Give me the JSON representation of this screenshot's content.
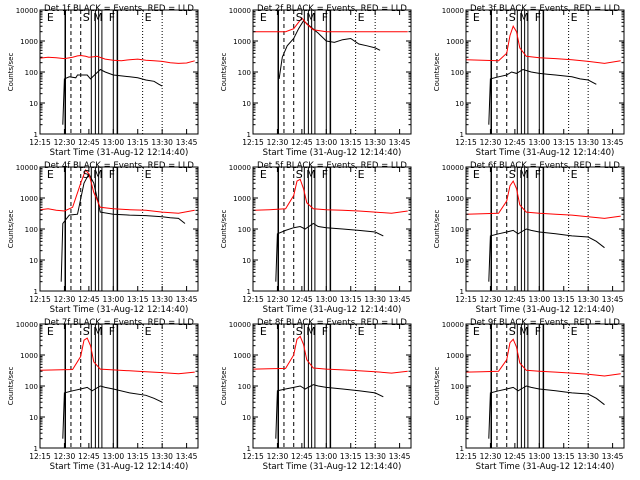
{
  "figure": {
    "time_axis_label": "Start Time (31-Aug-12 12:14:40)",
    "y_axis_label": "Counts/sec",
    "x_tick_labels": [
      "12:15",
      "12:30",
      "12:45",
      "13:00",
      "13:15",
      "13:30",
      "13:45"
    ],
    "y_tick_labels": [
      "1",
      "10",
      "100",
      "1000",
      "10000"
    ],
    "colors": {
      "events": "#000000",
      "lld": "#ff0000",
      "axes": "#000000",
      "background": "#ffffff"
    }
  },
  "chart_data": [
    {
      "type": "line",
      "title": "Det 1f BLACK = Events, RED = LLD",
      "xlabel": "Start Time (31-Aug-12 12:14:40)",
      "ylabel": "Counts/sec",
      "xlim": [
        "12:15",
        "13:52"
      ],
      "ylim": [
        1,
        10000
      ],
      "yscale": "log",
      "attenuator_labels": [
        "E",
        "S",
        "M",
        "F",
        "E"
      ],
      "series": [
        {
          "color": "black",
          "x": [
            "12:29",
            "12:30",
            "12:33",
            "12:37",
            "12:38",
            "12:44",
            "12:46",
            "12:52",
            "12:55",
            "13:00",
            "13:05",
            "13:10",
            "13:15",
            "13:20",
            "13:25",
            "13:28",
            "13:30"
          ],
          "values": [
            2,
            60,
            70,
            65,
            80,
            80,
            60,
            120,
            100,
            80,
            75,
            70,
            65,
            55,
            50,
            40,
            35
          ]
        },
        {
          "color": "red",
          "x": [
            "12:15",
            "12:20",
            "12:25",
            "12:30",
            "12:35",
            "12:38",
            "12:40",
            "12:43",
            "12:45",
            "12:48",
            "12:50",
            "12:55",
            "13:00",
            "13:05",
            "13:10",
            "13:15",
            "13:20",
            "13:25",
            "13:30",
            "13:35",
            "13:40",
            "13:45",
            "13:50"
          ],
          "values": [
            280,
            300,
            290,
            270,
            300,
            330,
            340,
            320,
            300,
            310,
            320,
            260,
            240,
            230,
            250,
            260,
            240,
            230,
            220,
            200,
            190,
            195,
            230
          ]
        }
      ]
    },
    {
      "type": "line",
      "title": "Det 2f BLACK = Events, RED = LLD",
      "xlabel": "Start Time (31-Aug-12 12:14:40)",
      "ylabel": "Counts/sec",
      "xlim": [
        "12:15",
        "13:52"
      ],
      "ylim": [
        1,
        10000
      ],
      "yscale": "log",
      "attenuator_labels": [
        "E",
        "S",
        "M",
        "F",
        "E"
      ],
      "series": [
        {
          "color": "black",
          "x": [
            "12:31",
            "12:33",
            "12:36",
            "12:40",
            "12:43",
            "12:46",
            "12:50",
            "12:55",
            "13:00",
            "13:05",
            "13:10",
            "13:15",
            "13:20",
            "13:25",
            "13:30",
            "13:33"
          ],
          "values": [
            60,
            300,
            700,
            1200,
            2500,
            4500,
            3000,
            1800,
            1000,
            900,
            1100,
            1200,
            800,
            700,
            600,
            500
          ]
        },
        {
          "color": "red",
          "x": [
            "12:15",
            "12:25",
            "12:35",
            "12:40",
            "12:43",
            "12:45",
            "12:48",
            "12:52",
            "13:00",
            "13:10",
            "13:20",
            "13:30",
            "13:40",
            "13:50"
          ],
          "values": [
            2000,
            2000,
            2000,
            2500,
            4000,
            5500,
            3500,
            2300,
            2000,
            2000,
            2000,
            2000,
            2000,
            2000
          ]
        }
      ]
    },
    {
      "type": "line",
      "title": "Det 3f BLACK = Events, RED = LLD",
      "xlabel": "Start Time (31-Aug-12 12:14:40)",
      "ylabel": "Counts/sec",
      "xlim": [
        "12:15",
        "13:52"
      ],
      "ylim": [
        1,
        10000
      ],
      "yscale": "log",
      "attenuator_labels": [
        "E",
        "S",
        "M",
        "F",
        "E"
      ],
      "series": [
        {
          "color": "black",
          "x": [
            "12:29",
            "12:30",
            "12:35",
            "12:40",
            "12:43",
            "12:46",
            "12:50",
            "12:55",
            "13:00",
            "13:05",
            "13:10",
            "13:15",
            "13:20",
            "13:25",
            "13:30",
            "13:35"
          ],
          "values": [
            2,
            60,
            70,
            80,
            100,
            90,
            120,
            100,
            90,
            85,
            80,
            75,
            70,
            60,
            55,
            40
          ]
        },
        {
          "color": "red",
          "x": [
            "12:15",
            "12:25",
            "12:35",
            "12:40",
            "12:42",
            "12:44",
            "12:46",
            "12:48",
            "12:52",
            "13:00",
            "13:10",
            "13:20",
            "13:30",
            "13:40",
            "13:50"
          ],
          "values": [
            250,
            240,
            230,
            400,
            1500,
            3000,
            2000,
            600,
            320,
            290,
            270,
            250,
            220,
            190,
            230
          ]
        }
      ]
    },
    {
      "type": "line",
      "title": "Det 4f BLACK = Events, RED = LLD",
      "xlabel": "Start Time (31-Aug-12 12:14:40)",
      "ylabel": "Counts/sec",
      "xlim": [
        "12:15",
        "13:52"
      ],
      "ylim": [
        1,
        10000
      ],
      "yscale": "log",
      "attenuator_labels": [
        "E",
        "S",
        "M",
        "F",
        "E"
      ],
      "series": [
        {
          "color": "black",
          "x": [
            "12:28",
            "12:29",
            "12:33",
            "12:38",
            "12:42",
            "12:45",
            "12:48",
            "12:52",
            "13:00",
            "13:10",
            "13:20",
            "13:30",
            "13:35",
            "13:40",
            "13:44"
          ],
          "values": [
            2,
            150,
            280,
            300,
            3000,
            6000,
            3000,
            350,
            300,
            280,
            270,
            250,
            230,
            220,
            150
          ]
        },
        {
          "color": "red",
          "x": [
            "12:15",
            "12:20",
            "12:25",
            "12:30",
            "12:35",
            "12:40",
            "12:43",
            "12:45",
            "12:48",
            "12:52",
            "13:00",
            "13:10",
            "13:20",
            "13:30",
            "13:40",
            "13:50"
          ],
          "values": [
            420,
            450,
            400,
            380,
            500,
            3000,
            8000,
            6000,
            1500,
            500,
            450,
            420,
            400,
            350,
            320,
            400
          ]
        }
      ]
    },
    {
      "type": "line",
      "title": "Det 5f BLACK = Events, RED = LLD",
      "xlabel": "Start Time (31-Aug-12 12:14:40)",
      "ylabel": "Counts/sec",
      "xlim": [
        "12:15",
        "13:52"
      ],
      "ylim": [
        1,
        10000
      ],
      "yscale": "log",
      "attenuator_labels": [
        "E",
        "S",
        "M",
        "F",
        "E"
      ],
      "series": [
        {
          "color": "black",
          "x": [
            "12:29",
            "12:30",
            "12:35",
            "12:40",
            "12:44",
            "12:47",
            "12:52",
            "12:55",
            "13:00",
            "13:10",
            "13:20",
            "13:30",
            "13:35"
          ],
          "values": [
            2,
            70,
            90,
            110,
            120,
            100,
            150,
            120,
            110,
            100,
            90,
            80,
            60
          ]
        },
        {
          "color": "red",
          "x": [
            "12:15",
            "12:25",
            "12:35",
            "12:40",
            "12:42",
            "12:44",
            "12:46",
            "12:48",
            "12:52",
            "13:00",
            "13:10",
            "13:20",
            "13:30",
            "13:40",
            "13:50"
          ],
          "values": [
            400,
            420,
            450,
            1200,
            3500,
            4000,
            2000,
            700,
            450,
            420,
            400,
            380,
            350,
            320,
            380
          ]
        }
      ]
    },
    {
      "type": "line",
      "title": "Det 6f BLACK = Events, RED = LLD",
      "xlabel": "Start Time (31-Aug-12 12:14:40)",
      "ylabel": "Counts/sec",
      "xlim": [
        "12:15",
        "13:52"
      ],
      "ylim": [
        1,
        10000
      ],
      "yscale": "log",
      "attenuator_labels": [
        "E",
        "S",
        "M",
        "F",
        "E"
      ],
      "series": [
        {
          "color": "black",
          "x": [
            "12:29",
            "12:30",
            "12:35",
            "12:40",
            "12:44",
            "12:47",
            "12:52",
            "12:55",
            "13:00",
            "13:10",
            "13:20",
            "13:30",
            "13:35",
            "13:40"
          ],
          "values": [
            2,
            60,
            70,
            80,
            90,
            70,
            100,
            90,
            80,
            70,
            60,
            55,
            40,
            25
          ]
        },
        {
          "color": "red",
          "x": [
            "12:15",
            "12:25",
            "12:35",
            "12:40",
            "12:42",
            "12:44",
            "12:46",
            "12:48",
            "12:52",
            "13:00",
            "13:10",
            "13:20",
            "13:30",
            "13:40",
            "13:50"
          ],
          "values": [
            300,
            310,
            320,
            800,
            2500,
            3500,
            2000,
            600,
            350,
            320,
            300,
            280,
            250,
            220,
            260
          ]
        }
      ]
    },
    {
      "type": "line",
      "title": "Det 7f BLACK = Events, RED = LLD",
      "xlabel": "Start Time (31-Aug-12 12:14:40)",
      "ylabel": "Counts/sec",
      "xlim": [
        "12:15",
        "13:52"
      ],
      "ylim": [
        1,
        10000
      ],
      "yscale": "log",
      "attenuator_labels": [
        "E",
        "S",
        "M",
        "F",
        "E"
      ],
      "series": [
        {
          "color": "black",
          "x": [
            "12:29",
            "12:30",
            "12:35",
            "12:40",
            "12:44",
            "12:47",
            "12:52",
            "12:55",
            "13:00",
            "13:10",
            "13:20",
            "13:25",
            "13:30"
          ],
          "values": [
            2,
            60,
            70,
            80,
            90,
            70,
            100,
            90,
            80,
            60,
            50,
            40,
            30
          ]
        },
        {
          "color": "red",
          "x": [
            "12:15",
            "12:25",
            "12:35",
            "12:40",
            "12:42",
            "12:44",
            "12:46",
            "12:48",
            "12:52",
            "13:00",
            "13:10",
            "13:20",
            "13:30",
            "13:40",
            "13:50"
          ],
          "values": [
            320,
            330,
            340,
            900,
            3000,
            3500,
            2000,
            600,
            350,
            330,
            310,
            290,
            270,
            250,
            280
          ]
        }
      ]
    },
    {
      "type": "line",
      "title": "Det 8f BLACK = Events, RED = LLD",
      "xlabel": "Start Time (31-Aug-12 12:14:40)",
      "ylabel": "Counts/sec",
      "xlim": [
        "12:15",
        "13:52"
      ],
      "ylim": [
        1,
        10000
      ],
      "yscale": "log",
      "attenuator_labels": [
        "E",
        "S",
        "M",
        "F",
        "E"
      ],
      "series": [
        {
          "color": "black",
          "x": [
            "12:29",
            "12:30",
            "12:35",
            "12:40",
            "12:44",
            "12:47",
            "12:52",
            "12:55",
            "13:00",
            "13:10",
            "13:20",
            "13:30",
            "13:35"
          ],
          "values": [
            2,
            70,
            80,
            90,
            100,
            80,
            110,
            100,
            90,
            80,
            70,
            60,
            45
          ]
        },
        {
          "color": "red",
          "x": [
            "12:15",
            "12:25",
            "12:35",
            "12:40",
            "12:42",
            "12:44",
            "12:46",
            "12:48",
            "12:52",
            "13:00",
            "13:10",
            "13:20",
            "13:30",
            "13:40",
            "13:50"
          ],
          "values": [
            350,
            360,
            370,
            1000,
            3200,
            4000,
            2200,
            700,
            380,
            350,
            330,
            310,
            290,
            260,
            300
          ]
        }
      ]
    },
    {
      "type": "line",
      "title": "Det 9f BLACK = Events, RED = LLD",
      "xlabel": "Start Time (31-Aug-12 12:14:40)",
      "ylabel": "Counts/sec",
      "xlim": [
        "12:15",
        "13:52"
      ],
      "ylim": [
        1,
        10000
      ],
      "yscale": "log",
      "attenuator_labels": [
        "E",
        "S",
        "M",
        "F",
        "E"
      ],
      "series": [
        {
          "color": "black",
          "x": [
            "12:29",
            "12:30",
            "12:35",
            "12:40",
            "12:44",
            "12:47",
            "12:52",
            "12:55",
            "13:00",
            "13:10",
            "13:20",
            "13:30",
            "13:35",
            "13:40"
          ],
          "values": [
            2,
            60,
            70,
            80,
            90,
            70,
            100,
            90,
            80,
            70,
            60,
            55,
            40,
            25
          ]
        },
        {
          "color": "red",
          "x": [
            "12:15",
            "12:25",
            "12:35",
            "12:40",
            "12:42",
            "12:44",
            "12:46",
            "12:48",
            "12:52",
            "13:00",
            "13:10",
            "13:20",
            "13:30",
            "13:40",
            "13:50"
          ],
          "values": [
            280,
            290,
            300,
            700,
            2500,
            3200,
            1800,
            550,
            320,
            300,
            280,
            260,
            240,
            210,
            250
          ]
        }
      ]
    }
  ]
}
